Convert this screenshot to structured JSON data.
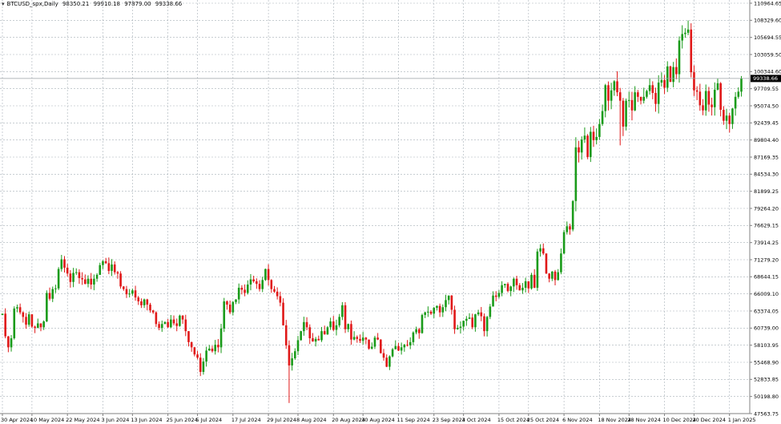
{
  "chart_data": {
    "type": "candlestick",
    "title": "BTCUSD_spx,Daily",
    "ohlc_header": [
      "98350.21",
      "99910.18",
      "97879.00",
      "99338.66"
    ],
    "current_price": "99338.66",
    "current_price_value": 99338.66,
    "ylim": [
      47563.75,
      110964.65
    ],
    "y_tick_labels": [
      "110964.65",
      "108329.60",
      "105694.55",
      "103059.50",
      "100344.60",
      "97709.55",
      "95074.50",
      "92439.45",
      "89804.40",
      "87169.35",
      "84534.30",
      "81899.25",
      "79264.20",
      "76629.15",
      "73914.25",
      "71279.20",
      "68644.15",
      "66009.10",
      "63374.05",
      "60739.00",
      "58103.95",
      "55468.90",
      "52833.85",
      "50198.80",
      "47563.75"
    ],
    "x_ticks": [
      {
        "day": 0,
        "label": "30 Apr 2024"
      },
      {
        "day": 10,
        "label": "10 May 2024"
      },
      {
        "day": 22,
        "label": "22 May 2024"
      },
      {
        "day": 34,
        "label": "3 Jun 2024"
      },
      {
        "day": 44,
        "label": "13 Jun 2024"
      },
      {
        "day": 56,
        "label": "25 Jun 2024"
      },
      {
        "day": 66,
        "label": "5 Jul 2024"
      },
      {
        "day": 78,
        "label": "17 Jul 2024"
      },
      {
        "day": 90,
        "label": "29 Jul 2024"
      },
      {
        "day": 100,
        "label": "8 Aug 2024"
      },
      {
        "day": 112,
        "label": "20 Aug 2024"
      },
      {
        "day": 122,
        "label": "30 Aug 2024"
      },
      {
        "day": 134,
        "label": "11 Sep 2024"
      },
      {
        "day": 146,
        "label": "23 Sep 2024"
      },
      {
        "day": 156,
        "label": "3 Oct 2024"
      },
      {
        "day": 168,
        "label": "15 Oct 2024"
      },
      {
        "day": 178,
        "label": "25 Oct 2024"
      },
      {
        "day": 190,
        "label": "6 Nov 2024"
      },
      {
        "day": 202,
        "label": "18 Nov 2024"
      },
      {
        "day": 212,
        "label": "28 Nov 2024"
      },
      {
        "day": 224,
        "label": "10 Dec 2024"
      },
      {
        "day": 234,
        "label": "20 Dec 2024"
      },
      {
        "day": 246,
        "label": "1 Jan 2025"
      }
    ],
    "first_open_k": 62.8,
    "closes_k": [
      63.0,
      59.5,
      57.8,
      59.2,
      63.8,
      64.0,
      63.2,
      62.5,
      61.3,
      62.9,
      61.0,
      60.8,
      61.5,
      60.9,
      61.8,
      66.2,
      65.3,
      66.8,
      66.9,
      69.9,
      71.4,
      70.1,
      69.2,
      67.9,
      69.3,
      69.4,
      68.5,
      68.3,
      67.6,
      68.4,
      67.5,
      68.4,
      69.0,
      70.5,
      71.1,
      70.8,
      69.6,
      70.6,
      69.4,
      69.2,
      67.2,
      66.8,
      66.0,
      66.1,
      66.6,
      65.5,
      64.9,
      64.3,
      65.2,
      64.4,
      63.5,
      63.2,
      61.4,
      60.8,
      61.4,
      61.7,
      60.9,
      62.1,
      61.5,
      61.1,
      62.7,
      62.1,
      60.3,
      58.6,
      57.8,
      56.7,
      56.2,
      54.0,
      55.6,
      57.3,
      57.6,
      57.2,
      58.2,
      57.8,
      60.7,
      64.9,
      64.4,
      63.2,
      64.8,
      65.2,
      67.0,
      66.7,
      66.2,
      67.5,
      68.3,
      68.0,
      67.6,
      66.8,
      68.2,
      69.9,
      68.2,
      66.8,
      66.4,
      65.7,
      64.7,
      61.2,
      58.1,
      55.0,
      56.1,
      57.2,
      58.9,
      60.3,
      61.7,
      60.9,
      59.2,
      58.7,
      59.1,
      58.9,
      60.3,
      59.8,
      60.9,
      61.8,
      60.5,
      61.2,
      62.5,
      64.3,
      60.6,
      61.4,
      59.0,
      59.4,
      59.1,
      58.8,
      59.3,
      59.0,
      57.6,
      57.9,
      59.3,
      59.0,
      56.9,
      56.2,
      54.8,
      56.4,
      57.5,
      58.0,
      57.3,
      57.8,
      58.2,
      58.1,
      58.6,
      60.1,
      60.6,
      60.0,
      62.8,
      63.2,
      63.3,
      63.0,
      63.9,
      64.2,
      63.2,
      64.0,
      65.1,
      65.8,
      63.6,
      60.6,
      60.8,
      61.0,
      61.9,
      62.2,
      62.4,
      60.9,
      62.9,
      63.2,
      62.6,
      60.3,
      62.5,
      64.1,
      65.8,
      65.6,
      66.2,
      67.4,
      67.6,
      66.5,
      67.2,
      68.4,
      67.4,
      66.6,
      67.0,
      68.0,
      66.9,
      69.0,
      67.0,
      72.6,
      73.1,
      72.3,
      69.2,
      68.4,
      69.5,
      68.2,
      69.4,
      72.3,
      75.6,
      76.5,
      76.0,
      80.4,
      88.7,
      87.9,
      89.9,
      90.5,
      87.2,
      91.1,
      89.8,
      90.3,
      92.3,
      94.3,
      98.3,
      95.9,
      97.5,
      98.9,
      97.2,
      95.9,
      91.9,
      95.9,
      96.0,
      94.4,
      97.2,
      96.5,
      95.9,
      96.5,
      97.4,
      98.3,
      97.1,
      95.4,
      98.7,
      99.1,
      97.9,
      101.2,
      98.8,
      101.1,
      100.0,
      105.2,
      106.2,
      106.4,
      106.9,
      100.3,
      97.5,
      97.3,
      95.2,
      94.4,
      97.4,
      95.3,
      94.9,
      97.6,
      98.6,
      94.5,
      92.8,
      93.6,
      92.3,
      94.7,
      96.5,
      97.3,
      99.34
    ],
    "wick_overrides_k": [
      {
        "day": 97,
        "low": 49.2
      },
      {
        "day": 232,
        "high": 108.3
      },
      {
        "day": 209,
        "low": 89.0
      },
      {
        "day": 221,
        "low": 94.2
      }
    ],
    "colors": {
      "bull": "#1a9b1a",
      "bear": "#e01818",
      "grid": "#a8b0b8",
      "axis": "#808080",
      "price_tag": "#000000"
    }
  }
}
